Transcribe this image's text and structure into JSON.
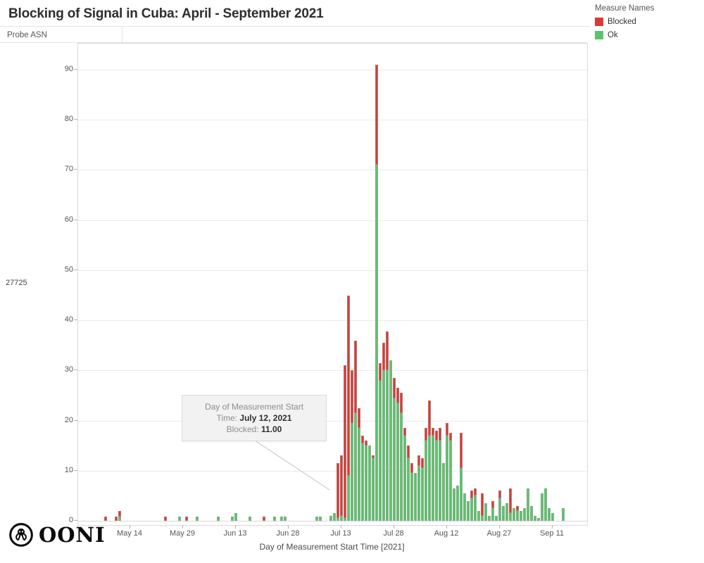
{
  "header": {
    "title": "Blocking of Signal in Cuba: April - September 2021",
    "axis_header": "Probe ASN",
    "row_label": "27725"
  },
  "legend": {
    "title": "Measure Names",
    "items": [
      {
        "label": "Blocked",
        "color": "#d93a35"
      },
      {
        "label": "Ok",
        "color": "#5bc46a"
      }
    ]
  },
  "tooltip": {
    "line1": "Day of Measurement Start",
    "line2_label": "Time: ",
    "line2_value": "July 12, 2021",
    "line3_label": "Blocked: ",
    "line3_value": "11.00"
  },
  "footer": {
    "logo_text": "OONI"
  },
  "chart_data": {
    "type": "bar",
    "stacked": true,
    "title": "Blocking of Signal in Cuba: April - September 2021",
    "xlabel": "Day of Measurement Start Time [2021]",
    "ylabel": "Probe ASN",
    "ylim": [
      0,
      95
    ],
    "grid": true,
    "legend_position": "top-right",
    "colors": {
      "blocked": "#d93a35",
      "ok": "#5bc46a"
    },
    "yticks": [
      0,
      10,
      20,
      30,
      40,
      50,
      60,
      70,
      80,
      90
    ],
    "xticks": [
      {
        "label": "May 14",
        "d": 0
      },
      {
        "label": "May 29",
        "d": 15
      },
      {
        "label": "Jun 13",
        "d": 30
      },
      {
        "label": "Jun 28",
        "d": 45
      },
      {
        "label": "Jul 13",
        "d": 60
      },
      {
        "label": "Jul 28",
        "d": 75
      },
      {
        "label": "Aug 12",
        "d": 90
      },
      {
        "label": "Aug 27",
        "d": 105
      },
      {
        "label": "Sep 11",
        "d": 120
      }
    ],
    "series_note": "d = days after May 14, 2021; values are Probe ASN measurement counts (Ok, Blocked)",
    "bars": [
      {
        "date": "May 7",
        "d": -7,
        "ok": 0,
        "blocked": 0.8
      },
      {
        "date": "May 10",
        "d": -4,
        "ok": 0,
        "blocked": 0.8
      },
      {
        "date": "May 11",
        "d": -3,
        "ok": 0.8,
        "blocked": 1.2
      },
      {
        "date": "May 24",
        "d": 10,
        "ok": 0,
        "blocked": 0.8
      },
      {
        "date": "May 28",
        "d": 14,
        "ok": 0.8,
        "blocked": 0
      },
      {
        "date": "May 30",
        "d": 16,
        "ok": 0,
        "blocked": 0.8
      },
      {
        "date": "Jun 2",
        "d": 19,
        "ok": 0.8,
        "blocked": 0
      },
      {
        "date": "Jun 8",
        "d": 25,
        "ok": 0.8,
        "blocked": 0
      },
      {
        "date": "Jun 12",
        "d": 29,
        "ok": 0.8,
        "blocked": 0
      },
      {
        "date": "Jun 13",
        "d": 30,
        "ok": 1.6,
        "blocked": 0
      },
      {
        "date": "Jun 17",
        "d": 34,
        "ok": 0.8,
        "blocked": 0
      },
      {
        "date": "Jun 21",
        "d": 38,
        "ok": 0,
        "blocked": 0.8
      },
      {
        "date": "Jun 24",
        "d": 41,
        "ok": 0.8,
        "blocked": 0
      },
      {
        "date": "Jun 26",
        "d": 43,
        "ok": 0.8,
        "blocked": 0
      },
      {
        "date": "Jun 27",
        "d": 44,
        "ok": 0.8,
        "blocked": 0
      },
      {
        "date": "Jul 6",
        "d": 53,
        "ok": 0.8,
        "blocked": 0
      },
      {
        "date": "Jul 7",
        "d": 54,
        "ok": 0.8,
        "blocked": 0
      },
      {
        "date": "Jul 10",
        "d": 57,
        "ok": 1,
        "blocked": 0
      },
      {
        "date": "Jul 11",
        "d": 58,
        "ok": 1.5,
        "blocked": 0
      },
      {
        "date": "Jul 12",
        "d": 59,
        "ok": 0.5,
        "blocked": 11
      },
      {
        "date": "Jul 13",
        "d": 60,
        "ok": 1,
        "blocked": 12
      },
      {
        "date": "Jul 14",
        "d": 61,
        "ok": 0.5,
        "blocked": 30.5
      },
      {
        "date": "Jul 15",
        "d": 62,
        "ok": 9,
        "blocked": 36
      },
      {
        "date": "Jul 16",
        "d": 63,
        "ok": 19.5,
        "blocked": 10.5
      },
      {
        "date": "Jul 17",
        "d": 64,
        "ok": 21.5,
        "blocked": 14.5
      },
      {
        "date": "Jul 18",
        "d": 65,
        "ok": 18.5,
        "blocked": 4
      },
      {
        "date": "Jul 19",
        "d": 66,
        "ok": 15.5,
        "blocked": 1.5
      },
      {
        "date": "Jul 20",
        "d": 67,
        "ok": 15,
        "blocked": 1
      },
      {
        "date": "Jul 21",
        "d": 68,
        "ok": 15,
        "blocked": 0
      },
      {
        "date": "Jul 22",
        "d": 69,
        "ok": 12.5,
        "blocked": 0.5
      },
      {
        "date": "Jul 23",
        "d": 70,
        "ok": 71,
        "blocked": 20
      },
      {
        "date": "Jul 24",
        "d": 71,
        "ok": 28,
        "blocked": 3.5
      },
      {
        "date": "Jul 25",
        "d": 72,
        "ok": 30,
        "blocked": 5.5
      },
      {
        "date": "Jul 26",
        "d": 73,
        "ok": 30,
        "blocked": 7.8
      },
      {
        "date": "Jul 27",
        "d": 74,
        "ok": 32,
        "blocked": 0
      },
      {
        "date": "Jul 28",
        "d": 75,
        "ok": 24.5,
        "blocked": 4
      },
      {
        "date": "Jul 29",
        "d": 76,
        "ok": 23.5,
        "blocked": 3
      },
      {
        "date": "Jul 30",
        "d": 77,
        "ok": 21.5,
        "blocked": 4
      },
      {
        "date": "Jul 31",
        "d": 78,
        "ok": 17,
        "blocked": 1.5
      },
      {
        "date": "Aug 1",
        "d": 79,
        "ok": 12.5,
        "blocked": 2.5
      },
      {
        "date": "Aug 2",
        "d": 80,
        "ok": 9.5,
        "blocked": 2
      },
      {
        "date": "Aug 3",
        "d": 81,
        "ok": 9.5,
        "blocked": 0
      },
      {
        "date": "Aug 4",
        "d": 82,
        "ok": 11,
        "blocked": 2
      },
      {
        "date": "Aug 5",
        "d": 83,
        "ok": 10.5,
        "blocked": 2
      },
      {
        "date": "Aug 6",
        "d": 84,
        "ok": 16,
        "blocked": 2.5
      },
      {
        "date": "Aug 7",
        "d": 85,
        "ok": 17,
        "blocked": 7
      },
      {
        "date": "Aug 8",
        "d": 86,
        "ok": 17,
        "blocked": 1.5
      },
      {
        "date": "Aug 9",
        "d": 87,
        "ok": 16,
        "blocked": 2
      },
      {
        "date": "Aug 10",
        "d": 88,
        "ok": 16,
        "blocked": 2.5
      },
      {
        "date": "Aug 11",
        "d": 89,
        "ok": 11.5,
        "blocked": 0
      },
      {
        "date": "Aug 12",
        "d": 90,
        "ok": 17,
        "blocked": 2.5
      },
      {
        "date": "Aug 13",
        "d": 91,
        "ok": 16,
        "blocked": 1.5
      },
      {
        "date": "Aug 14",
        "d": 92,
        "ok": 6.5,
        "blocked": 0
      },
      {
        "date": "Aug 15",
        "d": 93,
        "ok": 7,
        "blocked": 0
      },
      {
        "date": "Aug 16",
        "d": 94,
        "ok": 10.5,
        "blocked": 7
      },
      {
        "date": "Aug 17",
        "d": 95,
        "ok": 5.5,
        "blocked": 0
      },
      {
        "date": "Aug 18",
        "d": 96,
        "ok": 4,
        "blocked": 0
      },
      {
        "date": "Aug 19",
        "d": 97,
        "ok": 4.5,
        "blocked": 1.5
      },
      {
        "date": "Aug 20",
        "d": 98,
        "ok": 5,
        "blocked": 1.5
      },
      {
        "date": "Aug 21",
        "d": 99,
        "ok": 2,
        "blocked": 0
      },
      {
        "date": "Aug 22",
        "d": 100,
        "ok": 1,
        "blocked": 4.5
      },
      {
        "date": "Aug 23",
        "d": 101,
        "ok": 3.5,
        "blocked": 0
      },
      {
        "date": "Aug 24",
        "d": 102,
        "ok": 1,
        "blocked": 0
      },
      {
        "date": "Aug 25",
        "d": 103,
        "ok": 2.5,
        "blocked": 1.5
      },
      {
        "date": "Aug 26",
        "d": 104,
        "ok": 1,
        "blocked": 0
      },
      {
        "date": "Aug 27",
        "d": 105,
        "ok": 4.5,
        "blocked": 1.5
      },
      {
        "date": "Aug 28",
        "d": 106,
        "ok": 3,
        "blocked": 0
      },
      {
        "date": "Aug 29",
        "d": 107,
        "ok": 3.5,
        "blocked": 0
      },
      {
        "date": "Aug 30",
        "d": 108,
        "ok": 1.5,
        "blocked": 5
      },
      {
        "date": "Aug 31",
        "d": 109,
        "ok": 2.5,
        "blocked": 0
      },
      {
        "date": "Sep 1",
        "d": 110,
        "ok": 2,
        "blocked": 1
      },
      {
        "date": "Sep 2",
        "d": 111,
        "ok": 2,
        "blocked": 0
      },
      {
        "date": "Sep 3",
        "d": 112,
        "ok": 2.5,
        "blocked": 0
      },
      {
        "date": "Sep 4",
        "d": 113,
        "ok": 6.5,
        "blocked": 0
      },
      {
        "date": "Sep 5",
        "d": 114,
        "ok": 3,
        "blocked": 0
      },
      {
        "date": "Sep 6",
        "d": 115,
        "ok": 1,
        "blocked": 0
      },
      {
        "date": "Sep 7",
        "d": 116,
        "ok": 0.5,
        "blocked": 0
      },
      {
        "date": "Sep 8",
        "d": 117,
        "ok": 5.5,
        "blocked": 0
      },
      {
        "date": "Sep 9",
        "d": 118,
        "ok": 6.5,
        "blocked": 0
      },
      {
        "date": "Sep 10",
        "d": 119,
        "ok": 2.5,
        "blocked": 0
      },
      {
        "date": "Sep 11",
        "d": 120,
        "ok": 1.5,
        "blocked": 0
      },
      {
        "date": "Sep 14",
        "d": 123,
        "ok": 2.5,
        "blocked": 0
      }
    ]
  }
}
